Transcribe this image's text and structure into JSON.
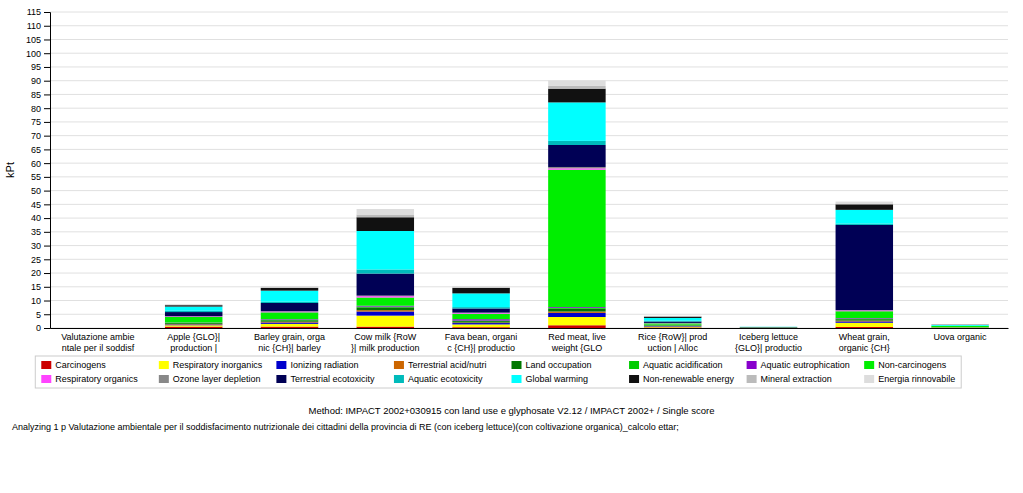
{
  "chart_data": {
    "type": "bar",
    "stacked": true,
    "grid": true,
    "legend": "bottom",
    "y_label": "kPt",
    "categories": [
      "Valutazione ambie\nntale per il soddisf",
      "Apple {GLO}|\nproduction |",
      "Barley grain, orga\nnic {CH}| barley",
      "Cow milk {RoW\n}| milk production",
      "Fava bean, organi\nc {CH}| productio",
      "Red meat, live\nweight {GLO",
      "Rice {RoW}| prod\nuction | Alloc",
      "Iceberg lettuce\n{GLO}| productio",
      "Wheat grain,\norganic {CH}",
      "Uova organic"
    ],
    "series": [
      {
        "name": "Carcinogens",
        "color": "#cc0000",
        "values": [
          0.0,
          0.5,
          0.5,
          0.5,
          0.3,
          1.0,
          0.2,
          0.05,
          0.4,
          0.1
        ]
      },
      {
        "name": "Respiratory inorganics",
        "color": "#ffff00",
        "values": [
          0.0,
          0.5,
          1.0,
          4.0,
          1.0,
          3.0,
          0.3,
          0.05,
          1.5,
          0.1
        ]
      },
      {
        "name": "Ionizing radiation",
        "color": "#0000cc",
        "values": [
          0.0,
          0.3,
          0.5,
          1.5,
          0.5,
          1.5,
          0.2,
          0.05,
          0.5,
          0.05
        ]
      },
      {
        "name": "Terrestrial acid/nutri",
        "color": "#cc6600",
        "values": [
          0.0,
          0.2,
          0.3,
          0.5,
          0.2,
          0.5,
          0.1,
          0.0,
          0.3,
          0.0
        ]
      },
      {
        "name": "Land occupation",
        "color": "#007700",
        "values": [
          0.0,
          0.3,
          0.5,
          1.0,
          0.5,
          1.0,
          0.2,
          0.0,
          0.5,
          0.0
        ]
      },
      {
        "name": "Aquatic acidification",
        "color": "#00cc00",
        "values": [
          0.0,
          0.1,
          0.2,
          0.3,
          0.2,
          0.3,
          0.1,
          0.0,
          0.2,
          0.0
        ]
      },
      {
        "name": "Aquatic eutrophication",
        "color": "#8800cc",
        "values": [
          0.0,
          0.1,
          0.2,
          0.3,
          0.5,
          0.3,
          0.1,
          0.0,
          0.2,
          0.0
        ]
      },
      {
        "name": "Non-carcinogens",
        "color": "#00ee00",
        "values": [
          0.0,
          2.0,
          2.5,
          3.0,
          2.0,
          50.0,
          0.5,
          0.1,
          2.5,
          0.5
        ]
      },
      {
        "name": "Respiratory organics",
        "color": "#ff44ff",
        "values": [
          0.0,
          0.2,
          0.3,
          0.5,
          0.3,
          0.5,
          0.1,
          0.0,
          0.3,
          0.0
        ]
      },
      {
        "name": "Ozone layer depletion",
        "color": "#888888",
        "values": [
          0.0,
          0.1,
          0.1,
          0.2,
          0.1,
          0.5,
          0.05,
          0.0,
          0.1,
          0.0
        ]
      },
      {
        "name": "Terrestrial ecotoxicity",
        "color": "#000055",
        "values": [
          0.0,
          1.5,
          3.0,
          8.0,
          1.5,
          8.0,
          0.5,
          0.1,
          31.0,
          0.0
        ]
      },
      {
        "name": "Aquatic ecotoxicity",
        "color": "#00bbbb",
        "values": [
          0.0,
          0.5,
          0.5,
          1.5,
          0.5,
          1.5,
          0.3,
          0.05,
          0.5,
          0.05
        ]
      },
      {
        "name": "Global warming",
        "color": "#00ffff",
        "values": [
          0.0,
          1.5,
          4.0,
          14.0,
          5.0,
          14.0,
          1.0,
          0.05,
          5.0,
          0.3
        ]
      },
      {
        "name": "Non-renewable energy",
        "color": "#111111",
        "values": [
          0.0,
          0.5,
          1.0,
          5.0,
          2.0,
          5.0,
          0.5,
          0.0,
          2.0,
          0.1
        ]
      },
      {
        "name": "Mineral extraction",
        "color": "#bbbbbb",
        "values": [
          0.0,
          0.1,
          0.2,
          1.0,
          0.2,
          1.0,
          0.1,
          0.0,
          0.3,
          0.0
        ]
      },
      {
        "name": "Energia rinnovabile",
        "color": "#dddddd",
        "values": [
          0.0,
          0.3,
          0.5,
          2.0,
          0.5,
          2.0,
          0.2,
          0.0,
          0.7,
          0.0
        ]
      }
    ],
    "ylim": [
      0,
      115
    ],
    "yticks": [
      0,
      5,
      10,
      15,
      20,
      25,
      30,
      35,
      40,
      45,
      50,
      55,
      60,
      65,
      70,
      75,
      80,
      85,
      90,
      95,
      100,
      105,
      110,
      115
    ],
    "annotations": [
      "Method: IMPACT 2002+030915 con land use e glyphosate V2.12 / IMPACT 2002+ / Single score",
      "Analyzing 1 p Valutazione ambientale per il soddisfacimento nutrizionale dei cittadini della provincia di RE (con iceberg lettuce)(con coltivazione organica)_calcolo ettar;"
    ]
  }
}
